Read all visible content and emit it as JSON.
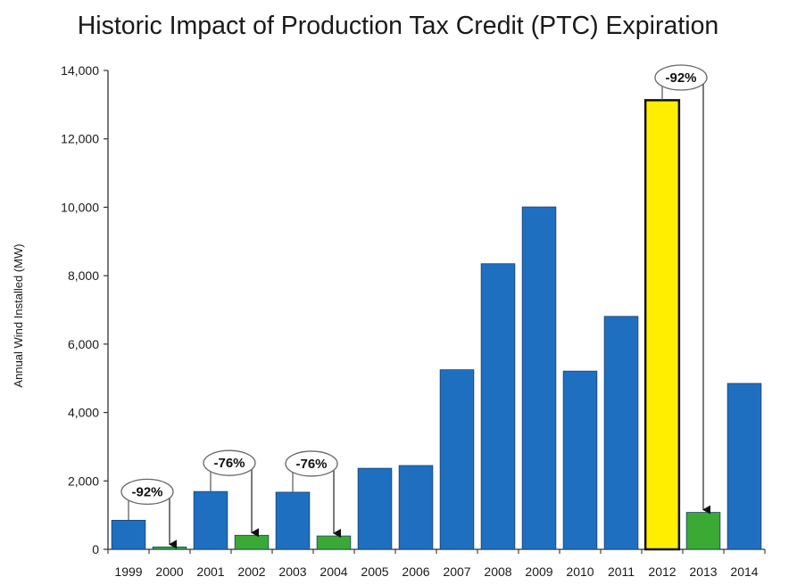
{
  "chart_data": {
    "type": "bar",
    "title": "Historic Impact of Production Tax Credit (PTC) Expiration",
    "xlabel": "",
    "ylabel": "Annual Wind Installed (MW)",
    "ylim": [
      0,
      14000
    ],
    "yticks": [
      "0",
      "2,000",
      "4,000",
      "6,000",
      "8,000",
      "10,000",
      "12,000",
      "14,000"
    ],
    "grid": false,
    "legend": "none",
    "categories": [
      "1999",
      "2000",
      "2001",
      "2002",
      "2003",
      "2004",
      "2005",
      "2006",
      "2007",
      "2008",
      "2009",
      "2010",
      "2011",
      "2012",
      "2013",
      "2014"
    ],
    "values": [
      850,
      70,
      1690,
      410,
      1670,
      390,
      2370,
      2450,
      5250,
      8350,
      10010,
      5210,
      6810,
      13130,
      1080,
      4850
    ],
    "bar_colors": [
      "#1f6fc1",
      "#3aaa35",
      "#1f6fc1",
      "#3aaa35",
      "#1f6fc1",
      "#3aaa35",
      "#1f6fc1",
      "#1f6fc1",
      "#1f6fc1",
      "#1f6fc1",
      "#1f6fc1",
      "#1f6fc1",
      "#1f6fc1",
      "#ffee00",
      "#3aaa35",
      "#1f6fc1"
    ],
    "annotations": [
      {
        "text": "-92%",
        "from": "1999",
        "to": "2000"
      },
      {
        "text": "-76%",
        "from": "2001",
        "to": "2002"
      },
      {
        "text": "-76%",
        "from": "2003",
        "to": "2004"
      },
      {
        "text": "-92%",
        "from": "2012",
        "to": "2013"
      }
    ]
  }
}
